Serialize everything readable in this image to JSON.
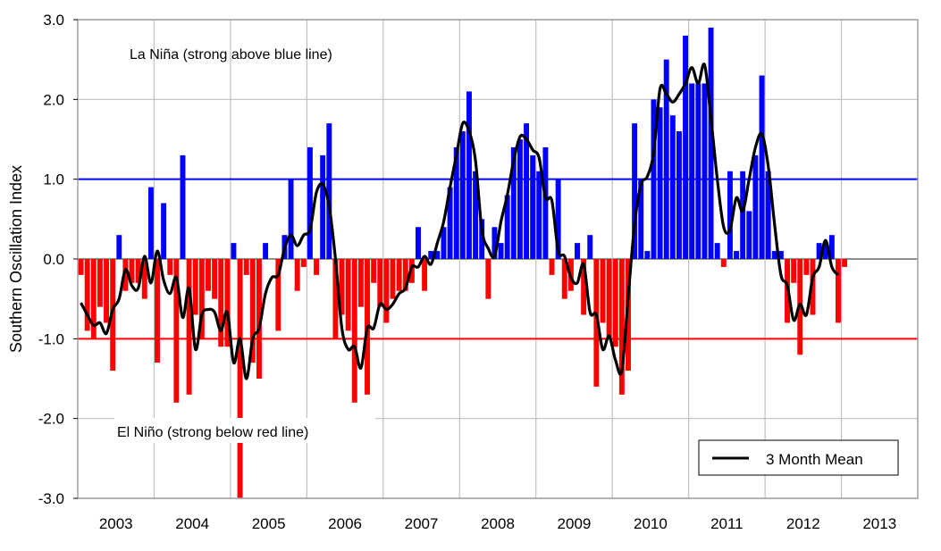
{
  "chart_data": {
    "type": "bar",
    "title": "",
    "xlabel": "",
    "ylabel": "Southern Oscillation Index",
    "ylim": [
      -3.0,
      3.0
    ],
    "yticks": [
      "3.0",
      "2.0",
      "1.0",
      "0.0",
      "-1.0",
      "-2.0",
      "-3.0"
    ],
    "ytick_values": [
      3,
      2,
      1,
      0,
      -1,
      -2,
      -3
    ],
    "xtick_labels": [
      "2003",
      "2004",
      "2005",
      "2006",
      "2007",
      "2008",
      "2009",
      "2010",
      "2011",
      "2012",
      "2013"
    ],
    "x_start": "2003-01",
    "frequency": "monthly",
    "grid": true,
    "positive_color": "#0000FF",
    "negative_color": "#FF0000",
    "series": [
      {
        "kind": "bar",
        "values": [
          -0.2,
          -0.9,
          -1.0,
          -0.6,
          -0.8,
          -1.4,
          0.3,
          -0.4,
          -0.3,
          -0.3,
          -0.5,
          0.9,
          -1.3,
          0.7,
          -0.2,
          -1.8,
          1.3,
          -1.7,
          -0.7,
          -1.0,
          -0.4,
          -0.5,
          -1.1,
          -1.1,
          0.2,
          -3.0,
          -0.2,
          -1.3,
          -1.5,
          0.2,
          0.0,
          -0.9,
          0.3,
          1.0,
          -0.4,
          -0.1,
          1.4,
          -0.2,
          1.3,
          1.7,
          -1.0,
          -0.7,
          -0.9,
          -1.8,
          -0.6,
          -1.7,
          -0.3,
          -0.6,
          -0.8,
          -0.5,
          -0.4,
          -0.4,
          -0.3,
          0.4,
          -0.4,
          0.1,
          0.1,
          0.4,
          0.9,
          1.4,
          1.6,
          2.1,
          1.1,
          0.5,
          -0.5,
          0.4,
          0.2,
          0.8,
          1.4,
          1.5,
          1.7,
          1.3,
          1.1,
          1.4,
          -0.2,
          1.0,
          -0.5,
          -0.4,
          0.2,
          -0.7,
          0.3,
          -1.6,
          -0.8,
          -1.0,
          -1.1,
          -1.7,
          -1.4,
          1.7,
          1.0,
          0.1,
          2.0,
          1.9,
          2.5,
          1.8,
          1.6,
          2.8,
          2.2,
          2.2,
          2.2,
          2.9,
          0.2,
          -0.1,
          1.1,
          0.1,
          1.1,
          0.6,
          1.3,
          2.3,
          1.1,
          0.1,
          0.1,
          -0.8,
          -0.3,
          -1.2,
          -0.2,
          -0.7,
          0.2,
          0.2,
          0.3,
          -0.8,
          -0.1
        ]
      },
      {
        "kind": "line",
        "name": "3 Month Mean",
        "window": 3,
        "color": "#000000"
      }
    ],
    "reference_lines": [
      {
        "value": 1.0,
        "color": "#0000FF"
      },
      {
        "value": -1.0,
        "color": "#FF0000"
      }
    ],
    "annotations": {
      "la_nina": "La Niña (strong above blue line)",
      "el_nino": "El Niño (strong below red line)"
    },
    "legend": {
      "position": "bottom-right",
      "label": "3 Month Mean"
    }
  }
}
